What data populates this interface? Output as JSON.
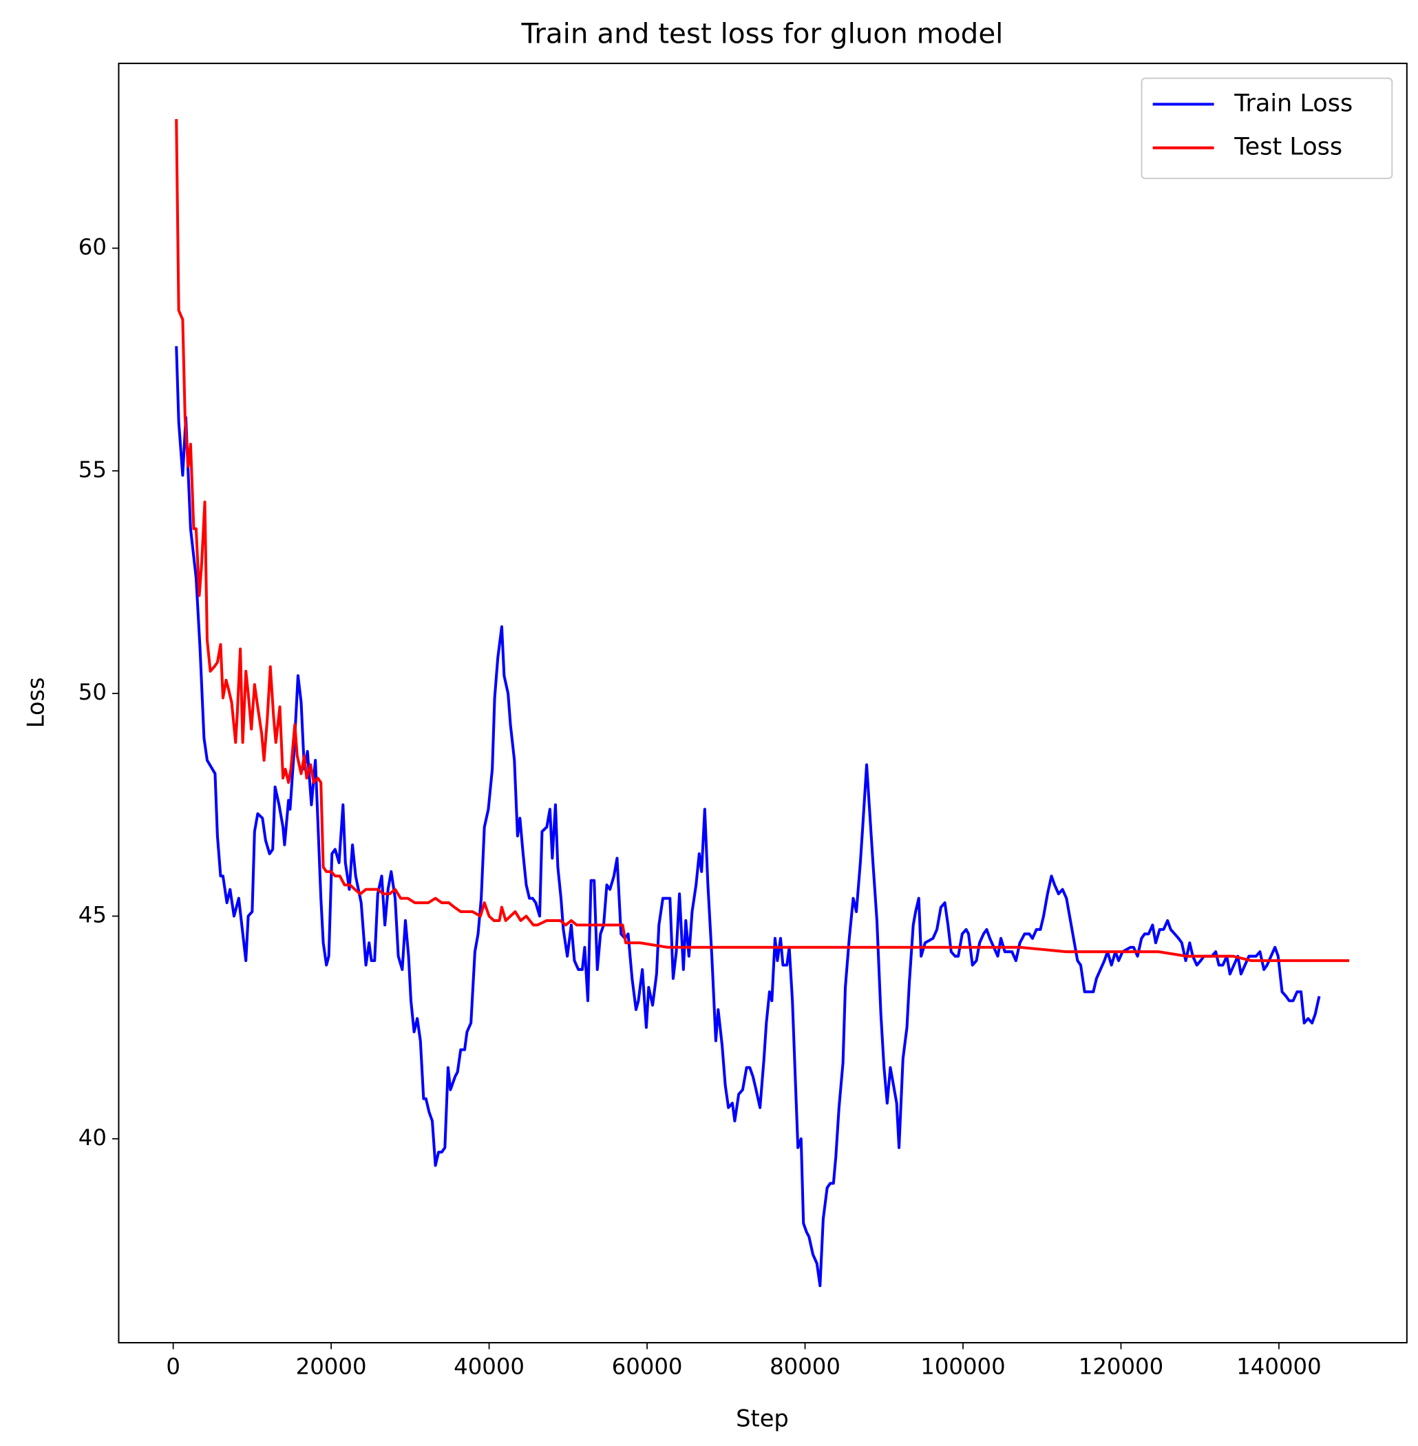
{
  "chart_data": {
    "type": "line",
    "title": "Train and test loss for gluon model",
    "x_label": "Step",
    "y_label": "Loss",
    "xlim": [
      -6900,
      156200
    ],
    "ylim": [
      35.42,
      64.15
    ],
    "xticks": [
      0,
      20000,
      40000,
      60000,
      80000,
      100000,
      120000,
      140000
    ],
    "yticks": [
      40,
      45,
      50,
      55,
      60
    ],
    "legend": "upper right",
    "grid": false,
    "series": [
      {
        "name": "Train Loss",
        "color": "#0000ff",
        "x": [
          400,
          700,
          1200,
          1600,
          2200,
          2900,
          3400,
          3900,
          4300,
          5300,
          5600,
          6000,
          6300,
          6800,
          7200,
          7700,
          8300,
          9200,
          9500,
          10000,
          10300,
          10700,
          11300,
          11700,
          12200,
          12600,
          12900,
          13400,
          13900,
          14100,
          14600,
          14800,
          15300,
          15800,
          16200,
          16600,
          17000,
          17500,
          18000,
          18300,
          18700,
          19000,
          19400,
          19700,
          20100,
          20500,
          21000,
          21500,
          21800,
          22300,
          22700,
          23100,
          23800,
          24400,
          24800,
          25100,
          25500,
          25900,
          26400,
          26800,
          27200,
          27600,
          28100,
          28500,
          29000,
          29400,
          29800,
          30100,
          30500,
          30900,
          31300,
          31700,
          32000,
          32400,
          32800,
          33200,
          33600,
          34000,
          34400,
          34800,
          35100,
          35700,
          36000,
          36400,
          36900,
          37200,
          37700,
          38200,
          38600,
          39000,
          39400,
          39900,
          40400,
          40700,
          41100,
          41600,
          41900,
          42400,
          42700,
          43200,
          43600,
          43900,
          44300,
          44700,
          45100,
          45500,
          45900,
          46400,
          46700,
          47300,
          47700,
          48000,
          48400,
          48700,
          49100,
          49400,
          49900,
          50400,
          50800,
          51300,
          51800,
          52100,
          52500,
          52900,
          53300,
          53700,
          54100,
          54500,
          54900,
          55300,
          55800,
          56200,
          56700,
          57200,
          57600,
          58100,
          58600,
          58900,
          59400,
          59900,
          60200,
          60700,
          61200,
          61500,
          62000,
          62500,
          62900,
          63300,
          63700,
          64100,
          64600,
          64900,
          65300,
          65700,
          66200,
          66600,
          66900,
          67300,
          67700,
          68200,
          68700,
          69000,
          69500,
          69900,
          70300,
          70800,
          71100,
          71600,
          72100,
          72600,
          73000,
          73400,
          73800,
          74300,
          74800,
          75100,
          75500,
          75800,
          76200,
          76500,
          76900,
          77200,
          77700,
          78000,
          78400,
          78800,
          79100,
          79500,
          79800,
          80200,
          80500,
          81000,
          81500,
          81900,
          82300,
          82800,
          83200,
          83600,
          83900,
          84300,
          84800,
          85100,
          85600,
          86100,
          86500,
          87000,
          87300,
          87800,
          88200,
          88600,
          89100,
          89600,
          90000,
          90400,
          90800,
          91200,
          91600,
          91900,
          92400,
          92900,
          93200,
          93700,
          94000,
          94400,
          94700,
          95200,
          96200,
          96700,
          97200,
          97700,
          98100,
          98500,
          99000,
          99400,
          99900,
          100400,
          100700,
          101200,
          101700,
          102100,
          102600,
          103000,
          103400,
          103900,
          104400,
          104800,
          105300,
          106200,
          106700,
          107200,
          107800,
          108400,
          108800,
          109300,
          109800,
          110200,
          110700,
          111200,
          111600,
          112100,
          112600,
          113100,
          113500,
          114000,
          114500,
          114900,
          115400,
          116000,
          116500,
          116900,
          117400,
          117900,
          118300,
          118800,
          119300,
          119700,
          120200,
          121200,
          121600,
          122100,
          122600,
          123000,
          123500,
          124000,
          124400,
          124900,
          125400,
          125900,
          126300,
          126800,
          127300,
          127700,
          128200,
          128700,
          129100,
          129600,
          130100,
          130500,
          131000,
          131500,
          132000,
          132400,
          132900,
          133400,
          133800,
          134300,
          134800,
          135200,
          135700,
          136200,
          136700,
          137100,
          137600,
          138100,
          138500,
          139000,
          139500,
          139900,
          140400,
          140900,
          141300,
          141800,
          142300,
          142800,
          143200,
          143700,
          144200,
          144600,
          145100
        ],
        "values": [
          57.8,
          56.1,
          54.9,
          56.2,
          53.7,
          52.6,
          51.0,
          49.0,
          48.5,
          48.2,
          46.8,
          45.9,
          45.9,
          45.3,
          45.6,
          45.0,
          45.4,
          44.0,
          45.0,
          45.1,
          46.9,
          47.3,
          47.2,
          46.7,
          46.4,
          46.5,
          47.9,
          47.5,
          47.0,
          46.6,
          47.6,
          47.4,
          48.7,
          50.4,
          49.8,
          48.3,
          48.7,
          47.5,
          48.5,
          47.2,
          45.4,
          44.4,
          43.9,
          44.1,
          46.4,
          46.5,
          46.2,
          47.5,
          46.2,
          45.6,
          46.6,
          45.9,
          45.3,
          43.9,
          44.4,
          44.0,
          44.0,
          45.5,
          45.9,
          44.8,
          45.6,
          46.0,
          45.4,
          44.1,
          43.8,
          44.9,
          44.1,
          43.1,
          42.4,
          42.7,
          42.2,
          40.9,
          40.9,
          40.6,
          40.4,
          39.4,
          39.7,
          39.7,
          39.8,
          41.6,
          41.1,
          41.4,
          41.5,
          42.0,
          42.0,
          42.4,
          42.6,
          44.2,
          44.6,
          45.4,
          47.0,
          47.4,
          48.3,
          49.9,
          50.8,
          51.5,
          50.4,
          50.0,
          49.3,
          48.5,
          46.8,
          47.2,
          46.4,
          45.7,
          45.4,
          45.4,
          45.3,
          45.0,
          46.9,
          47.0,
          47.4,
          46.3,
          47.5,
          46.1,
          45.4,
          44.7,
          44.1,
          44.8,
          44.0,
          43.8,
          43.8,
          44.3,
          43.1,
          45.8,
          45.8,
          43.8,
          44.6,
          44.8,
          45.7,
          45.6,
          45.9,
          46.3,
          44.6,
          44.5,
          44.6,
          43.6,
          42.9,
          43.1,
          43.8,
          42.5,
          43.4,
          43.0,
          43.7,
          44.8,
          45.4,
          45.4,
          45.4,
          43.6,
          44.2,
          45.5,
          43.8,
          44.9,
          44.1,
          45.1,
          45.7,
          46.4,
          46.0,
          47.4,
          45.7,
          44.1,
          42.2,
          42.9,
          42.1,
          41.2,
          40.7,
          40.8,
          40.4,
          41.0,
          41.1,
          41.6,
          41.6,
          41.4,
          41.1,
          40.7,
          41.8,
          42.6,
          43.3,
          43.1,
          44.5,
          44.0,
          44.5,
          43.9,
          43.9,
          44.3,
          43.1,
          41.2,
          39.8,
          40.0,
          38.1,
          37.9,
          37.8,
          37.4,
          37.2,
          36.7,
          38.2,
          38.9,
          39.0,
          39.0,
          39.6,
          40.7,
          41.7,
          43.4,
          44.5,
          45.4,
          45.1,
          46.2,
          47.0,
          48.4,
          47.3,
          46.2,
          44.9,
          42.8,
          41.6,
          40.8,
          41.6,
          41.2,
          40.8,
          39.8,
          41.8,
          42.5,
          43.5,
          44.8,
          45.1,
          45.4,
          44.1,
          44.4,
          44.5,
          44.7,
          45.2,
          45.3,
          44.8,
          44.2,
          44.1,
          44.1,
          44.6,
          44.7,
          44.6,
          43.9,
          44.0,
          44.4,
          44.6,
          44.7,
          44.5,
          44.3,
          44.1,
          44.5,
          44.2,
          44.2,
          44.0,
          44.4,
          44.6,
          44.6,
          44.5,
          44.7,
          44.7,
          45.0,
          45.5,
          45.9,
          45.7,
          45.5,
          45.6,
          45.4,
          45.0,
          44.5,
          44.0,
          43.9,
          43.3,
          43.3,
          43.3,
          43.6,
          43.8,
          44.0,
          44.2,
          43.9,
          44.2,
          44.0,
          44.2,
          44.3,
          44.3,
          44.1,
          44.5,
          44.6,
          44.6,
          44.8,
          44.4,
          44.7,
          44.7,
          44.9,
          44.7,
          44.6,
          44.5,
          44.4,
          44.0,
          44.4,
          44.1,
          43.9,
          44.0,
          44.1,
          44.1,
          44.1,
          44.2,
          43.9,
          43.9,
          44.1,
          43.7,
          43.9,
          44.1,
          43.7,
          43.9,
          44.1,
          44.1,
          44.1,
          44.2,
          43.8,
          43.9,
          44.1,
          44.3,
          44.1,
          43.3,
          43.2,
          43.1,
          43.1,
          43.3,
          43.3,
          42.6,
          42.7,
          42.6,
          42.8,
          43.2
        ]
      },
      {
        "name": "Test Loss",
        "color": "#ff0000",
        "x": [
          400,
          700,
          1200,
          1500,
          1900,
          2200,
          2600,
          2900,
          3300,
          3600,
          4000,
          4300,
          4700,
          5200,
          5600,
          6000,
          6300,
          6700,
          7000,
          7400,
          7900,
          8100,
          8500,
          8800,
          9200,
          9500,
          9900,
          10300,
          10700,
          11200,
          11500,
          11900,
          12300,
          12700,
          13000,
          13500,
          13900,
          14200,
          14600,
          14900,
          15400,
          15700,
          16200,
          16600,
          16900,
          17400,
          17800,
          18300,
          18700,
          19000,
          19400,
          20000,
          20500,
          21100,
          21700,
          22400,
          23000,
          23700,
          24400,
          25100,
          25900,
          26600,
          27400,
          28100,
          28800,
          29700,
          30600,
          31600,
          32300,
          33200,
          34000,
          34900,
          35600,
          36400,
          37100,
          37900,
          38900,
          39400,
          40000,
          40600,
          41300,
          41600,
          42100,
          42700,
          43300,
          44000,
          44700,
          45600,
          46100,
          47300,
          48100,
          49000,
          49700,
          50400,
          51100,
          51800,
          52900,
          54100,
          55300,
          56100,
          56900,
          57300,
          59100,
          62600,
          67300,
          72000,
          77800,
          83700,
          89600,
          95400,
          100100,
          101300,
          104800,
          107200,
          113100,
          116600,
          118900,
          124800,
          128300,
          130700,
          134200,
          136500,
          140100,
          144800,
          148900
        ],
        "values": [
          62.9,
          58.6,
          58.4,
          56.2,
          55.1,
          55.6,
          53.7,
          53.7,
          52.2,
          52.9,
          54.3,
          51.2,
          50.5,
          50.6,
          50.7,
          51.1,
          49.9,
          50.3,
          50.1,
          49.8,
          48.9,
          49.5,
          51.0,
          48.9,
          50.5,
          50.0,
          49.2,
          50.2,
          49.7,
          49.1,
          48.5,
          49.4,
          50.6,
          49.5,
          48.9,
          49.7,
          48.1,
          48.3,
          48.0,
          48.3,
          49.3,
          48.6,
          48.2,
          48.6,
          48.1,
          48.4,
          48.0,
          48.1,
          48.0,
          46.1,
          46.0,
          46.0,
          45.9,
          45.9,
          45.7,
          45.7,
          45.6,
          45.5,
          45.6,
          45.6,
          45.6,
          45.5,
          45.5,
          45.6,
          45.4,
          45.4,
          45.3,
          45.3,
          45.3,
          45.4,
          45.3,
          45.3,
          45.2,
          45.1,
          45.1,
          45.1,
          45.0,
          45.3,
          45.0,
          44.9,
          44.9,
          45.2,
          44.9,
          45.0,
          45.1,
          44.9,
          45.0,
          44.8,
          44.8,
          44.9,
          44.9,
          44.9,
          44.8,
          44.9,
          44.8,
          44.8,
          44.8,
          44.8,
          44.8,
          44.8,
          44.8,
          44.4,
          44.4,
          44.3,
          44.3,
          44.3,
          44.3,
          44.3,
          44.3,
          44.3,
          44.3,
          44.3,
          44.3,
          44.3,
          44.2,
          44.2,
          44.2,
          44.2,
          44.1,
          44.1,
          44.1,
          44.0,
          44.0,
          44.0,
          44.0
        ]
      }
    ]
  }
}
